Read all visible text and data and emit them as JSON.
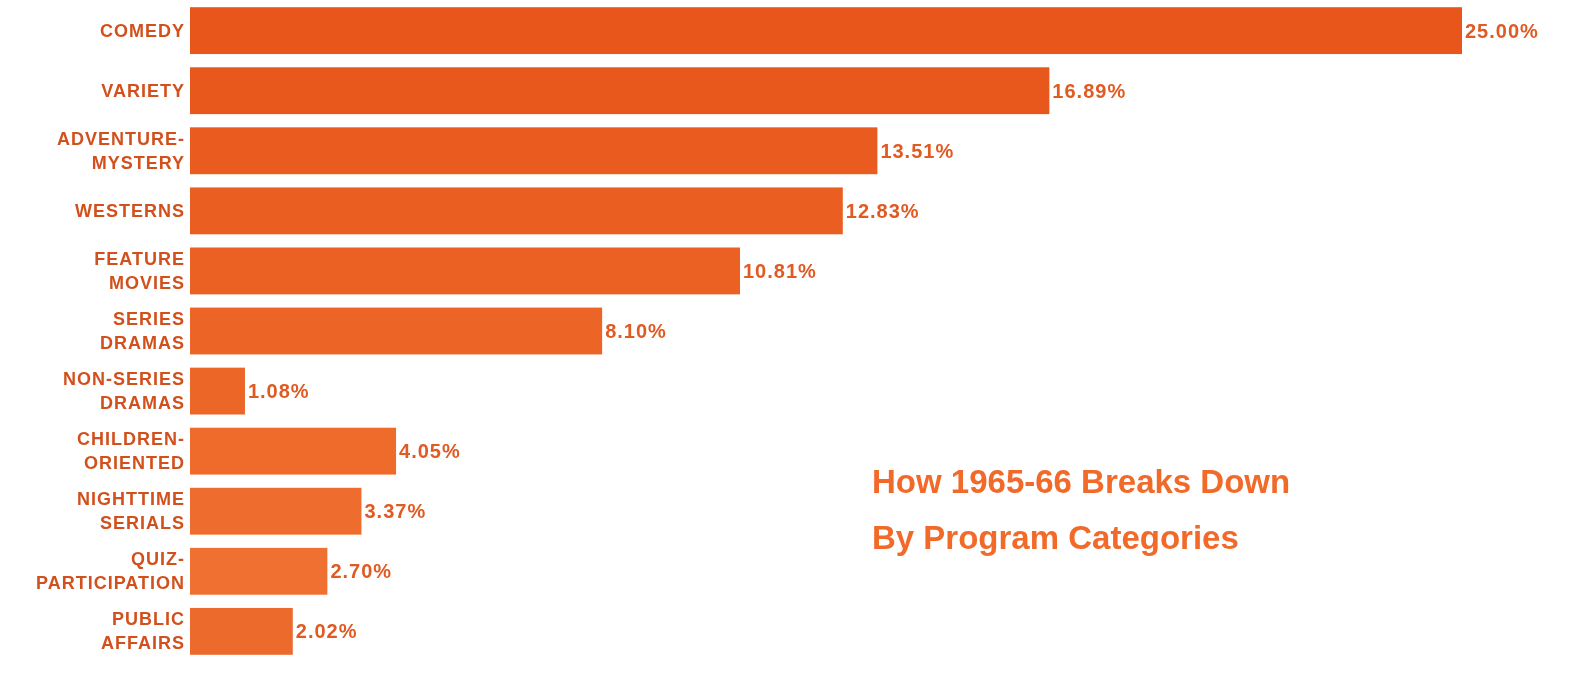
{
  "chart_data": {
    "type": "bar",
    "orientation": "horizontal",
    "title": "How 1965-66 Breaks Down By Program Categories",
    "categories": [
      "COMEDY",
      "VARIETY",
      "ADVENTURE-MYSTERY",
      "WESTERNS",
      "FEATURE MOVIES",
      "SERIES DRAMAS",
      "NON-SERIES DRAMAS",
      "CHILDREN-ORIENTED",
      "NIGHTTIME SERIALS",
      "QUIZ-PARTICIPATION",
      "PUBLIC AFFAIRS"
    ],
    "values": [
      25.0,
      16.89,
      13.51,
      12.83,
      10.81,
      8.1,
      1.08,
      4.05,
      3.37,
      2.7,
      2.02
    ],
    "value_labels": [
      "25.00%",
      "16.89%",
      "13.51%",
      "12.83%",
      "10.81%",
      "8.10%",
      "1.08%",
      "4.05%",
      "3.37%",
      "2.70%",
      "2.02%"
    ],
    "colors": [
      "#e8561c",
      "#e8581d",
      "#e95b1f",
      "#ea5e22",
      "#eb6124",
      "#ec6426",
      "#ec6628",
      "#ee6b2c",
      "#ee6d2e",
      "#ef7030",
      "#ec6a2c"
    ]
  }
}
